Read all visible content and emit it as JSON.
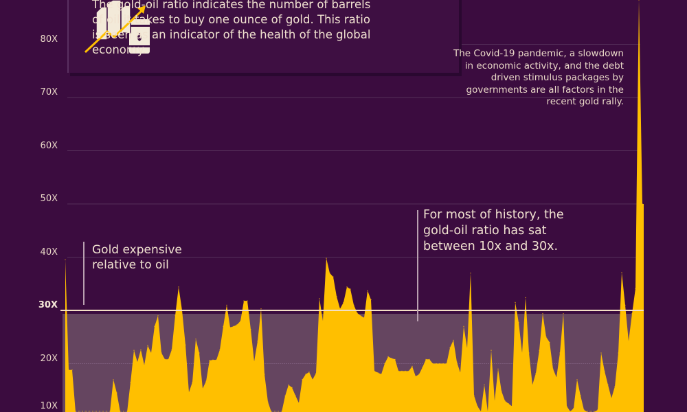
{
  "info": {
    "text": "The gold-oil ratio indicates the number of barrels of oil it takes to buy one ounce of gold. This ratio is seen as an indicator of the health of the global economy.",
    "icon": "gold-bars-oil-barrel-rising-arrow-icon"
  },
  "annotations": {
    "gold_expensive": "Gold expensive relative to oil",
    "most_history": "For most of history, the gold-oil ratio has sat between 10x and 30x.",
    "covid": "The Covid-19 pandemic, a slowdown in economic activity, and the debt driven stimulus packages by governments are all factors in the recent gold rally."
  },
  "colors": {
    "background": "#3b0c3f",
    "area": "#ffbf00",
    "band": "#654560",
    "threshold_line": "#f3dfc4"
  },
  "chart_data": {
    "type": "area",
    "title": "",
    "xlabel": "",
    "ylabel": "",
    "ylim": [
      10,
      88
    ],
    "yticks": [
      "10X",
      "20X",
      "30X",
      "40X",
      "50X",
      "60X",
      "70X",
      "80X"
    ],
    "grid": true,
    "highlight_band": [
      10,
      30
    ],
    "threshold": 30,
    "values": [
      39.5,
      18.8,
      18.8,
      6,
      5,
      6,
      5,
      7,
      8,
      9,
      7,
      6,
      9,
      10.5,
      17,
      14.5,
      9,
      8,
      10,
      16.5,
      22.5,
      20.3,
      22.6,
      19.7,
      23.4,
      22,
      27,
      29,
      22,
      20.8,
      20.8,
      22.6,
      29,
      34.4,
      30,
      23.5,
      14.6,
      16.5,
      24.6,
      22,
      15.3,
      16.7,
      20.6,
      20.7,
      20.7,
      22.6,
      27,
      31,
      26.8,
      27,
      27.3,
      28,
      31.8,
      31.8,
      26.4,
      20.4,
      24.2,
      30.3,
      18,
      12.8,
      9,
      8,
      7.5,
      10,
      13.9,
      16,
      15.5,
      14,
      12.6,
      17,
      18,
      18.4,
      17,
      18.2,
      32.2,
      28,
      39.8,
      37,
      36.3,
      32.6,
      30.3,
      31.5,
      34.4,
      34,
      31,
      29.5,
      29,
      28.6,
      33.7,
      32,
      18.6,
      18.3,
      18,
      20,
      21.3,
      21,
      20.8,
      18.6,
      18.6,
      18.6,
      18.6,
      19.5,
      17.6,
      18,
      19.3,
      20.8,
      20.8,
      20,
      20,
      20,
      20,
      20,
      23,
      24.4,
      20.3,
      18.3,
      27,
      22.9,
      37,
      14,
      12,
      11,
      16,
      11,
      22.5,
      13,
      19,
      14.8,
      13,
      12.5,
      12,
      31.5,
      27.7,
      22,
      32.4,
      22,
      16,
      18.2,
      22.5,
      29.4,
      25,
      24,
      19,
      17.4,
      22,
      29.4,
      12,
      11,
      11.6,
      17,
      14,
      11.3,
      9,
      9,
      10,
      11.3,
      22,
      18.6,
      16,
      13.5,
      15.7,
      22,
      37.1,
      31,
      24.2,
      29.4,
      34.1,
      95,
      50
    ]
  }
}
